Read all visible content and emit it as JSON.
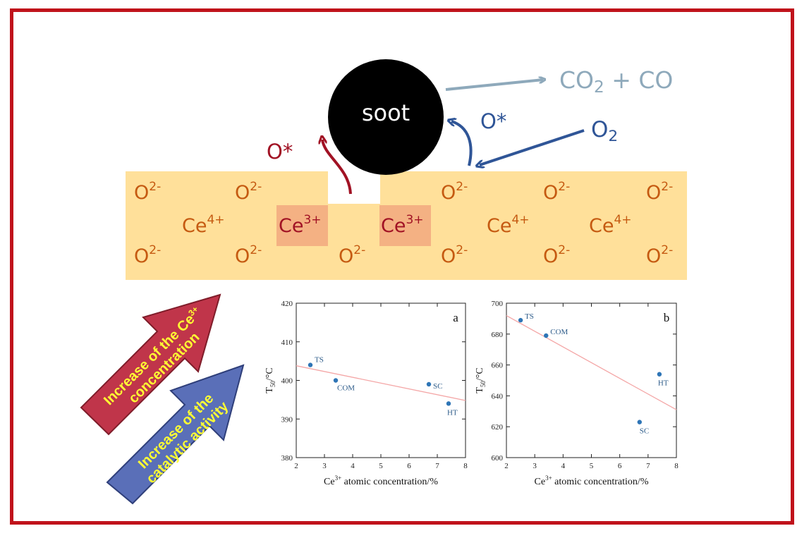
{
  "diagram": {
    "soot_label": "soot",
    "products": {
      "main": "CO",
      "sub": "2",
      "rest": " + CO"
    },
    "oxygen": {
      "main": "O",
      "sub": "2"
    },
    "o_star_left": "O*",
    "o_star_right": "O*",
    "ions": [
      {
        "base": "O",
        "sup": "2-",
        "kind": "o"
      },
      {
        "base": "O",
        "sup": "2-",
        "kind": "o"
      },
      {
        "base": "O",
        "sup": "2-",
        "kind": "o"
      },
      {
        "base": "O",
        "sup": "2-",
        "kind": "o"
      },
      {
        "base": "O",
        "sup": "2-",
        "kind": "o"
      },
      {
        "base": "Ce",
        "sup": "4+",
        "kind": "ce4"
      },
      {
        "base": "Ce",
        "sup": "3+",
        "kind": "ce3"
      },
      {
        "base": "Ce",
        "sup": "3+",
        "kind": "ce3"
      },
      {
        "base": "Ce",
        "sup": "4+",
        "kind": "ce4"
      },
      {
        "base": "Ce",
        "sup": "4+",
        "kind": "ce4"
      },
      {
        "base": "O",
        "sup": "2-",
        "kind": "o"
      },
      {
        "base": "O",
        "sup": "2-",
        "kind": "o"
      },
      {
        "base": "O",
        "sup": "2-",
        "kind": "o"
      },
      {
        "base": "O",
        "sup": "2-",
        "kind": "o"
      },
      {
        "base": "O",
        "sup": "2-",
        "kind": "o"
      },
      {
        "base": "O",
        "sup": "2-",
        "kind": "o"
      }
    ],
    "arrow_ce": {
      "line1_pre": "Increase of the Ce",
      "line1_sup": "3+",
      "line2": "concentration"
    },
    "arrow_activity": {
      "line1": "Increase of the",
      "line2": "catalytic activity"
    }
  },
  "colors": {
    "frame": "#c0121b",
    "lattice": "#ffe09a",
    "ce3_box": "#f4b183",
    "ion_text": "#c55a11",
    "ce3_text": "#a11224",
    "o_star_red": "#a11224",
    "o2_blue": "#2f5597",
    "products_gray": "#8ea9bb",
    "arrow_red": "#c0354a",
    "arrow_blue": "#5a6fb8",
    "arrow_text": "#ffff33",
    "point": "#2e75b6",
    "fit_line": "#f4a6a6"
  },
  "chart_data": [
    {
      "type": "scatter",
      "panel_label": "a",
      "xlabel": {
        "pre": "Ce",
        "sup": "3+",
        "post": " atomic concentration/%"
      },
      "ylabel": {
        "pre": "T",
        "sub": "50",
        "post": "/°C"
      },
      "xlim": [
        2,
        8
      ],
      "ylim": [
        380,
        420
      ],
      "xticks": [
        2,
        3,
        4,
        5,
        6,
        7,
        8
      ],
      "yticks": [
        380,
        390,
        400,
        410,
        420
      ],
      "points": [
        {
          "label": "TS",
          "x": 2.5,
          "y": 404
        },
        {
          "label": "COM",
          "x": 3.4,
          "y": 400
        },
        {
          "label": "SC",
          "x": 6.7,
          "y": 399
        },
        {
          "label": "HT",
          "x": 7.4,
          "y": 394
        }
      ],
      "fit": {
        "x": [
          2,
          8
        ],
        "y": [
          403.8,
          394.8
        ]
      }
    },
    {
      "type": "scatter",
      "panel_label": "b",
      "xlabel": {
        "pre": "Ce",
        "sup": "3+",
        "post": " atomic concentration/%"
      },
      "ylabel": {
        "pre": "T",
        "sub": "50",
        "post": "/°C"
      },
      "xlim": [
        2,
        8
      ],
      "ylim": [
        600,
        700
      ],
      "xticks": [
        2,
        3,
        4,
        5,
        6,
        7,
        8
      ],
      "yticks": [
        600,
        620,
        640,
        660,
        680,
        700
      ],
      "points": [
        {
          "label": "TS",
          "x": 2.5,
          "y": 689
        },
        {
          "label": "COM",
          "x": 3.4,
          "y": 679
        },
        {
          "label": "SC",
          "x": 6.7,
          "y": 623
        },
        {
          "label": "HT",
          "x": 7.4,
          "y": 654
        }
      ],
      "fit": {
        "x": [
          2,
          8
        ],
        "y": [
          692,
          631
        ]
      }
    }
  ]
}
